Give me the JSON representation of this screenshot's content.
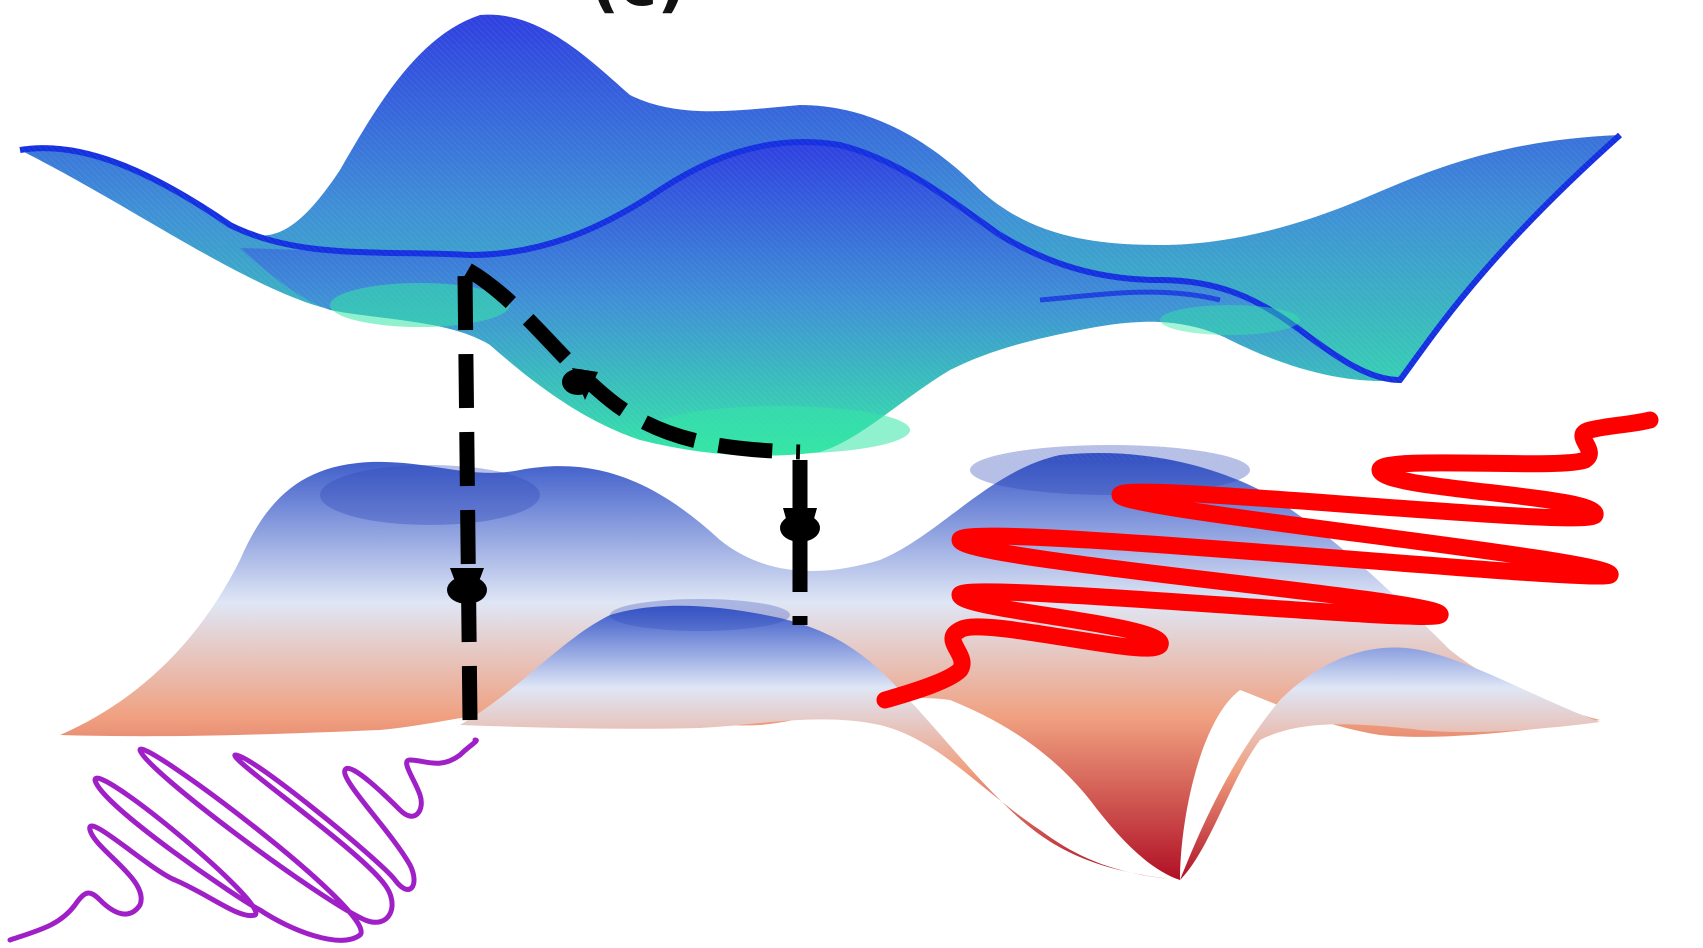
{
  "figure": {
    "panel_label": "(c)"
  },
  "colors": {
    "upper_surface_peak": "#2f3fe0",
    "upper_surface_mid": "#3f8fd6",
    "upper_surface_valley": "#35e6a6",
    "upper_surface_edge": "#1530e0",
    "lower_surface_peak": "#3656c8",
    "lower_surface_mid": "#dfe6f5",
    "lower_surface_warm": "#f0a080",
    "lower_surface_valley": "#b01025",
    "transition_arrows": "#000000",
    "excitation_pulse": "#a020c8",
    "emission_pulse": "#ff0000"
  },
  "elements": {
    "upper_surface": "excited-state-surface",
    "lower_surface": "ground-state-surface",
    "excitation": "purple-wave-pulse",
    "emission": "red-wave-pulse",
    "pathway": "dashed-arrows"
  }
}
